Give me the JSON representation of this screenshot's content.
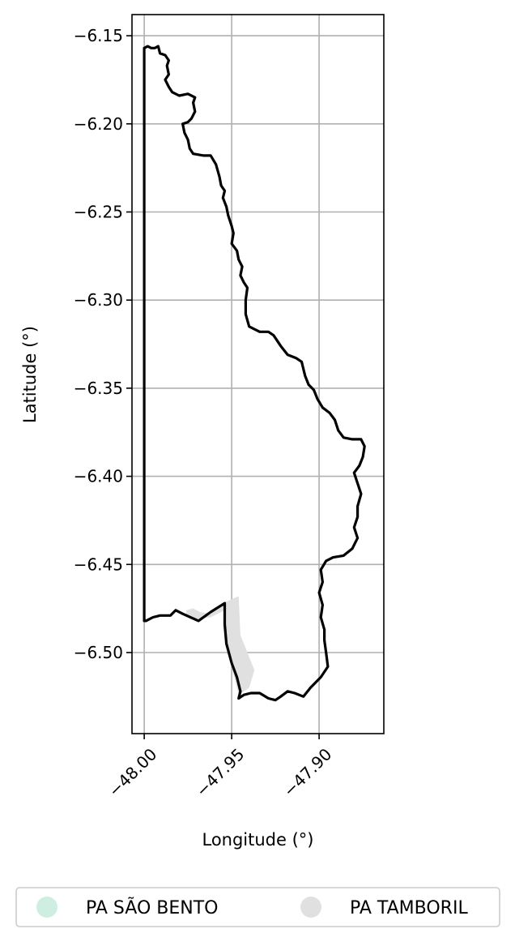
{
  "chart_data": {
    "type": "map",
    "title": "",
    "xlabel": "Longitude (°)",
    "ylabel": "Latitude (°)",
    "xlim": [
      -48.007,
      -47.863
    ],
    "ylim": [
      -6.546,
      -6.138
    ],
    "grid": true,
    "xticks": [
      -48.0,
      -47.95,
      -47.9
    ],
    "xtick_labels": [
      "−48.00",
      "−47.95",
      "−47.90"
    ],
    "yticks": [
      -6.15,
      -6.2,
      -6.25,
      -6.3,
      -6.35,
      -6.4,
      -6.45,
      -6.5
    ],
    "ytick_labels": [
      "−6.15",
      "−6.20",
      "−6.25",
      "−6.30",
      "−6.35",
      "−6.40",
      "−6.45",
      "−6.50"
    ],
    "legend_position": "bottom",
    "legend": [
      {
        "name": "PA SÃO BENTO",
        "color": "#cdeee0"
      },
      {
        "name": "PA TAMBORIL",
        "color": "#e0e0e0"
      }
    ],
    "boundary": [
      [
        -48.0,
        -6.157
      ],
      [
        -47.998,
        -6.156
      ],
      [
        -47.996,
        -6.157
      ],
      [
        -47.994,
        -6.157
      ],
      [
        -47.992,
        -6.156
      ],
      [
        -47.991,
        -6.16
      ],
      [
        -47.988,
        -6.161
      ],
      [
        -47.986,
        -6.164
      ],
      [
        -47.987,
        -6.167
      ],
      [
        -47.986,
        -6.172
      ],
      [
        -47.988,
        -6.175
      ],
      [
        -47.986,
        -6.179
      ],
      [
        -47.984,
        -6.182
      ],
      [
        -47.98,
        -6.184
      ],
      [
        -47.975,
        -6.183
      ],
      [
        -47.971,
        -6.185
      ],
      [
        -47.972,
        -6.188
      ],
      [
        -47.971,
        -6.193
      ],
      [
        -47.973,
        -6.197
      ],
      [
        -47.975,
        -6.199
      ],
      [
        -47.978,
        -6.2
      ],
      [
        -47.977,
        -6.205
      ],
      [
        -47.975,
        -6.209
      ],
      [
        -47.974,
        -6.214
      ],
      [
        -47.972,
        -6.217
      ],
      [
        -47.966,
        -6.218
      ],
      [
        -47.962,
        -6.218
      ],
      [
        -47.959,
        -6.223
      ],
      [
        -47.957,
        -6.23
      ],
      [
        -47.956,
        -6.235
      ],
      [
        -47.954,
        -6.238
      ],
      [
        -47.955,
        -6.242
      ],
      [
        -47.953,
        -6.247
      ],
      [
        -47.952,
        -6.252
      ],
      [
        -47.95,
        -6.258
      ],
      [
        -47.949,
        -6.262
      ],
      [
        -47.95,
        -6.268
      ],
      [
        -47.947,
        -6.272
      ],
      [
        -47.946,
        -6.277
      ],
      [
        -47.944,
        -6.281
      ],
      [
        -47.945,
        -6.286
      ],
      [
        -47.943,
        -6.29
      ],
      [
        -47.941,
        -6.293
      ],
      [
        -47.942,
        -6.3
      ],
      [
        -47.942,
        -6.308
      ],
      [
        -47.94,
        -6.315
      ],
      [
        -47.934,
        -6.318
      ],
      [
        -47.929,
        -6.318
      ],
      [
        -47.926,
        -6.32
      ],
      [
        -47.922,
        -6.326
      ],
      [
        -47.918,
        -6.331
      ],
      [
        -47.913,
        -6.333
      ],
      [
        -47.91,
        -6.335
      ],
      [
        -47.908,
        -6.343
      ],
      [
        -47.906,
        -6.348
      ],
      [
        -47.903,
        -6.351
      ],
      [
        -47.901,
        -6.356
      ],
      [
        -47.898,
        -6.361
      ],
      [
        -47.894,
        -6.364
      ],
      [
        -47.891,
        -6.368
      ],
      [
        -47.889,
        -6.374
      ],
      [
        -47.886,
        -6.378
      ],
      [
        -47.881,
        -6.379
      ],
      [
        -47.876,
        -6.379
      ],
      [
        -47.874,
        -6.383
      ],
      [
        -47.875,
        -6.389
      ],
      [
        -47.877,
        -6.394
      ],
      [
        -47.88,
        -6.398
      ],
      [
        -47.878,
        -6.404
      ],
      [
        -47.876,
        -6.41
      ],
      [
        -47.878,
        -6.417
      ],
      [
        -47.878,
        -6.423
      ],
      [
        -47.88,
        -6.429
      ],
      [
        -47.878,
        -6.435
      ],
      [
        -47.881,
        -6.441
      ],
      [
        -47.886,
        -6.445
      ],
      [
        -47.892,
        -6.446
      ],
      [
        -47.896,
        -6.448
      ],
      [
        -47.899,
        -6.453
      ],
      [
        -47.898,
        -6.46
      ],
      [
        -47.9,
        -6.466
      ],
      [
        -47.898,
        -6.473
      ],
      [
        -47.899,
        -6.48
      ],
      [
        -47.897,
        -6.487
      ],
      [
        -47.897,
        -6.493
      ],
      [
        -47.896,
        -6.5
      ],
      [
        -47.895,
        -6.508
      ],
      [
        -47.899,
        -6.514
      ],
      [
        -47.905,
        -6.52
      ],
      [
        -47.909,
        -6.525
      ],
      [
        -47.914,
        -6.523
      ],
      [
        -47.918,
        -6.522
      ],
      [
        -47.922,
        -6.525
      ],
      [
        -47.925,
        -6.527
      ],
      [
        -47.929,
        -6.526
      ],
      [
        -47.934,
        -6.523
      ],
      [
        -47.939,
        -6.523
      ],
      [
        -47.943,
        -6.524
      ],
      [
        -47.946,
        -6.526
      ],
      [
        -47.945,
        -6.522
      ],
      [
        -47.947,
        -6.514
      ],
      [
        -47.95,
        -6.506
      ],
      [
        -47.953,
        -6.495
      ],
      [
        -47.954,
        -6.484
      ],
      [
        -47.954,
        -6.472
      ],
      [
        -47.962,
        -6.477
      ],
      [
        -47.969,
        -6.482
      ],
      [
        -47.978,
        -6.478
      ],
      [
        -47.982,
        -6.476
      ],
      [
        -47.985,
        -6.479
      ],
      [
        -47.991,
        -6.479
      ],
      [
        -47.995,
        -6.48
      ],
      [
        -47.999,
        -6.482
      ],
      [
        -48.0,
        -6.482
      ],
      [
        -48.0,
        -6.157
      ]
    ],
    "tamboril_polygon": [
      [
        -47.976,
        -6.476
      ],
      [
        -47.972,
        -6.475
      ],
      [
        -47.968,
        -6.477
      ],
      [
        -47.962,
        -6.478
      ],
      [
        -47.955,
        -6.472
      ],
      [
        -47.946,
        -6.468
      ],
      [
        -47.945,
        -6.49
      ],
      [
        -47.941,
        -6.5
      ],
      [
        -47.937,
        -6.51
      ],
      [
        -47.94,
        -6.52
      ],
      [
        -47.946,
        -6.524
      ],
      [
        -47.95,
        -6.508
      ],
      [
        -47.953,
        -6.494
      ],
      [
        -47.954,
        -6.476
      ],
      [
        -47.962,
        -6.48
      ],
      [
        -47.97,
        -6.481
      ],
      [
        -47.976,
        -6.479
      ]
    ]
  }
}
